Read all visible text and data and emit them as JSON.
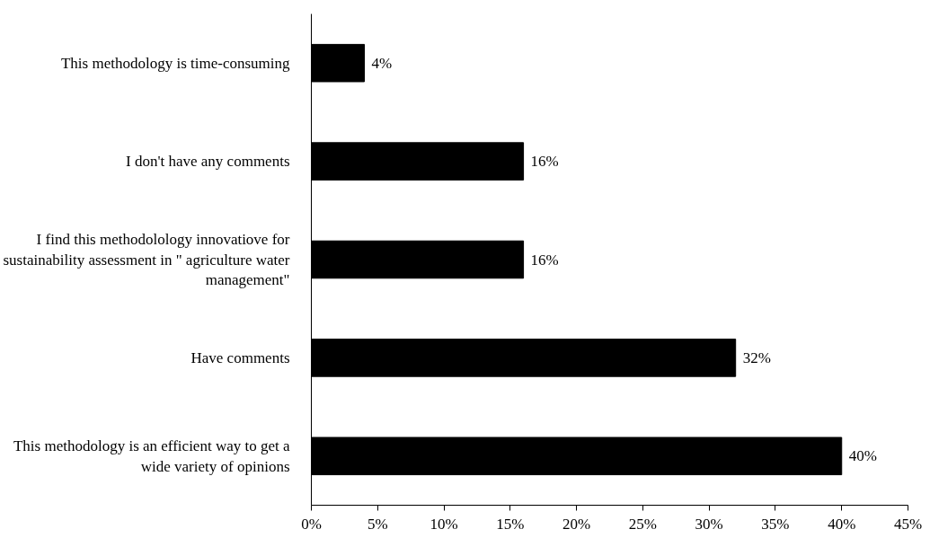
{
  "chart_data": {
    "type": "bar",
    "orientation": "horizontal",
    "categories": [
      "This methodology is time-consuming",
      "I don't have any comments",
      "I find this methodolology innovatiove for sustainability assessment in \" agriculture water management\"",
      "Have comments",
      "This methodology is an efficient way to get a wide variety of opinions"
    ],
    "values": [
      4,
      16,
      16,
      32,
      40
    ],
    "value_labels": [
      "4%",
      "16%",
      "16%",
      "32%",
      "40%"
    ],
    "color": "#000000",
    "xlim": [
      0,
      45
    ],
    "xticks": [
      {
        "value": 0,
        "label": "0%"
      },
      {
        "value": 5,
        "label": "5%"
      },
      {
        "value": 10,
        "label": "10%"
      },
      {
        "value": 15,
        "label": "15%"
      },
      {
        "value": 20,
        "label": "20%"
      },
      {
        "value": 25,
        "label": "25%"
      },
      {
        "value": 30,
        "label": "30%"
      },
      {
        "value": 35,
        "label": "35%"
      },
      {
        "value": 40,
        "label": "40%"
      },
      {
        "value": 45,
        "label": "45%"
      }
    ],
    "grid": false
  }
}
